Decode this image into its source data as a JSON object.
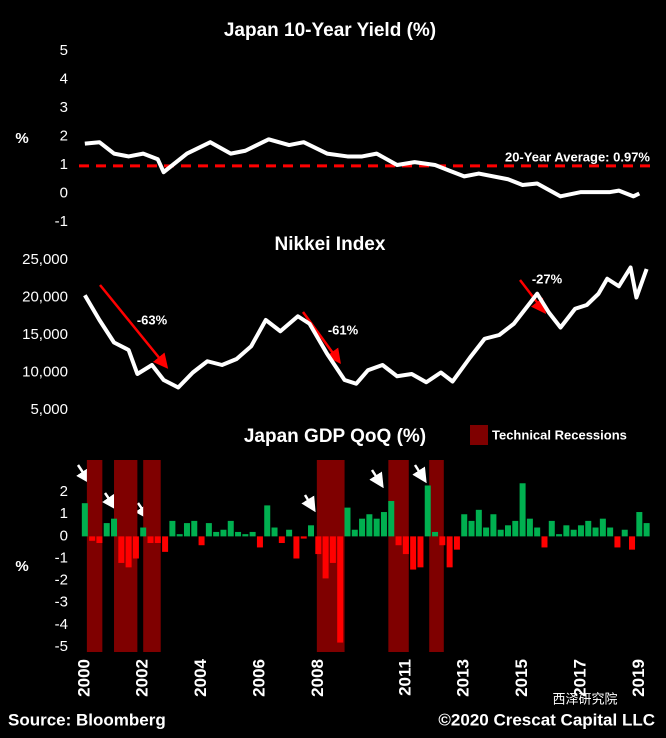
{
  "chart_data": [
    {
      "type": "line",
      "title": "Japan 10-Year Yield (%)",
      "y_label": "%",
      "color": "#ffffff",
      "x": [
        2000,
        2000.5,
        2001,
        2001.5,
        2002,
        2002.5,
        2002.7,
        2003.5,
        2004.3,
        2005,
        2005.5,
        2006.3,
        2007,
        2007.5,
        2008.3,
        2009,
        2009.5,
        2010,
        2010.7,
        2011.3,
        2012,
        2012.5,
        2013,
        2013.5,
        2014.5,
        2015,
        2015.5,
        2016.3,
        2017,
        2018,
        2018.3,
        2018.8,
        2019
      ],
      "values": [
        1.75,
        1.8,
        1.4,
        1.3,
        1.4,
        1.2,
        0.75,
        1.4,
        1.8,
        1.4,
        1.5,
        1.9,
        1.7,
        1.8,
        1.4,
        1.3,
        1.3,
        1.4,
        1.0,
        1.1,
        1.0,
        0.8,
        0.6,
        0.7,
        0.5,
        0.3,
        0.35,
        -0.1,
        0.05,
        0.05,
        0.1,
        -0.1,
        0.0
      ],
      "average": 0.97,
      "average_label": "20-Year Average: 0.97%",
      "average_color": "#ff0000",
      "xlim": [
        1999.8,
        2019.4
      ],
      "ylim": [
        -1,
        5
      ],
      "yticks": [
        -1,
        0,
        1,
        2,
        3,
        4,
        5
      ]
    },
    {
      "type": "line",
      "title": "Nikkei Index",
      "color": "#ffffff",
      "x": [
        2000,
        2000.5,
        2001,
        2001.5,
        2001.8,
        2002.3,
        2002.7,
        2003.2,
        2003.7,
        2004.2,
        2004.7,
        2005.2,
        2005.7,
        2006.2,
        2006.7,
        2007.3,
        2007.7,
        2008.3,
        2008.9,
        2009.3,
        2009.7,
        2010.2,
        2010.7,
        2011.2,
        2011.7,
        2012.2,
        2012.6,
        2013.2,
        2013.7,
        2014.2,
        2014.7,
        2015.2,
        2015.5,
        2015.9,
        2016.3,
        2016.8,
        2017.2,
        2017.6,
        2017.9,
        2018.3,
        2018.7,
        2018.9,
        2019.25
      ],
      "values": [
        20300,
        17000,
        14000,
        13000,
        9800,
        11000,
        9000,
        8000,
        10000,
        11500,
        11000,
        11800,
        13500,
        17000,
        15500,
        17500,
        16500,
        12500,
        9000,
        8500,
        10300,
        11000,
        9500,
        9800,
        8700,
        10000,
        8800,
        12000,
        14500,
        15000,
        16500,
        19000,
        20500,
        18000,
        16000,
        18500,
        19000,
        20500,
        22500,
        21500,
        24000,
        20000,
        23800
      ],
      "annotations": [
        "-63%",
        "-61%",
        "-27%"
      ],
      "xlim": [
        1999.8,
        2019.4
      ],
      "ylim": [
        5000,
        25000
      ],
      "yticks": [
        {
          "value": 5000,
          "label": "5,000"
        },
        {
          "value": 10000,
          "label": "10,000"
        },
        {
          "value": 15000,
          "label": "15,000"
        },
        {
          "value": 20000,
          "label": "20,000"
        },
        {
          "value": 25000,
          "label": "25,000"
        }
      ]
    },
    {
      "type": "bar",
      "title": "Japan  GDP QoQ (%)",
      "y_label": "%",
      "positive_color": "#00b050",
      "negative_color": "#ff0000",
      "x": [
        2000,
        2000.25,
        2000.5,
        2000.75,
        2001,
        2001.25,
        2001.5,
        2001.75,
        2002,
        2002.25,
        2002.5,
        2002.75,
        2003,
        2003.25,
        2003.5,
        2003.75,
        2004,
        2004.25,
        2004.5,
        2004.75,
        2005,
        2005.25,
        2005.5,
        2005.75,
        2006,
        2006.25,
        2006.5,
        2006.75,
        2007,
        2007.25,
        2007.5,
        2007.75,
        2008,
        2008.25,
        2008.5,
        2008.75,
        2009,
        2009.25,
        2009.5,
        2009.75,
        2010,
        2010.25,
        2010.5,
        2010.75,
        2011,
        2011.25,
        2011.5,
        2011.75,
        2012,
        2012.25,
        2012.5,
        2012.75,
        2013,
        2013.25,
        2013.5,
        2013.75,
        2014,
        2014.25,
        2014.5,
        2014.75,
        2015,
        2015.25,
        2015.5,
        2015.75,
        2016,
        2016.25,
        2016.5,
        2016.75,
        2017,
        2017.25,
        2017.5,
        2017.75,
        2018,
        2018.25,
        2018.5,
        2018.75,
        2019,
        2019.25
      ],
      "values": [
        1.5,
        -0.2,
        -0.3,
        0.6,
        0.8,
        -1.2,
        -1.4,
        -1.0,
        0.4,
        -0.3,
        -0.3,
        -0.7,
        0.7,
        0.1,
        0.6,
        0.7,
        -0.4,
        0.6,
        0.2,
        0.3,
        0.7,
        0.2,
        0.1,
        0.2,
        -0.5,
        1.4,
        0.4,
        -0.3,
        0.3,
        -1.0,
        -0.1,
        0.5,
        -0.8,
        -1.9,
        -1.2,
        -4.8,
        1.3,
        0.3,
        0.8,
        1.0,
        0.8,
        1.1,
        1.6,
        -0.4,
        -0.8,
        -1.5,
        -1.4,
        2.3,
        0.2,
        -0.4,
        -1.4,
        -0.6,
        1.0,
        0.7,
        1.2,
        0.4,
        1.0,
        0.3,
        0.5,
        0.7,
        2.4,
        0.8,
        0.4,
        -0.5,
        0.7,
        0.1,
        0.5,
        0.3,
        0.5,
        0.7,
        0.4,
        0.8,
        0.4,
        -0.5,
        0.3,
        -0.6,
        1.1,
        0.6
      ],
      "recessions": [
        [
          2000.07,
          2000.6
        ],
        [
          2001.0,
          2001.8
        ],
        [
          2002.0,
          2002.6
        ],
        [
          2007.95,
          2008.9
        ],
        [
          2010.4,
          2011.1
        ],
        [
          2011.8,
          2012.3
        ]
      ],
      "recession_label": "Technical Recessions",
      "recession_color": "#7f0000",
      "xlim": [
        1999.8,
        2019.4
      ],
      "ylim": [
        -5,
        3
      ],
      "yticks": [
        -5,
        -4,
        -3,
        -2,
        -1,
        0,
        1,
        2
      ],
      "xticks": [
        2000,
        2002,
        2004,
        2006,
        2008,
        2011,
        2013,
        2015,
        2017,
        2019
      ]
    }
  ],
  "footer": {
    "source": "Source: Bloomberg",
    "copyright": "©2020 Crescat Capital LLC",
    "watermark": "西泽研究院"
  }
}
